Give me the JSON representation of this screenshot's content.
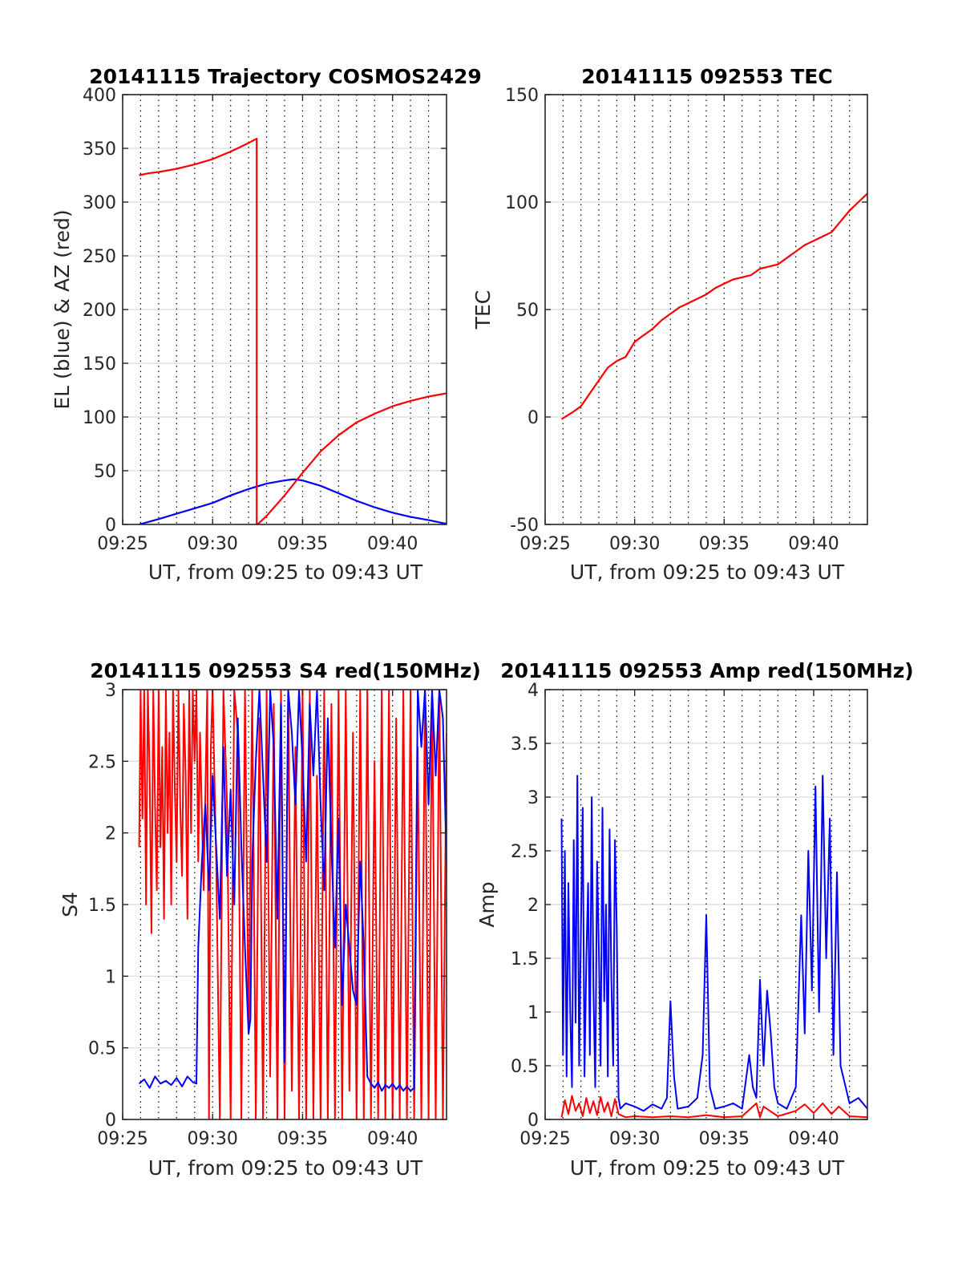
{
  "colors": {
    "el": "#0000ff",
    "az": "#ff0000",
    "tec": "#ff0000",
    "s4_red": "#ff0000",
    "s4_blue": "#0000ff",
    "amp_red": "#ff0000",
    "amp_blue": "#0000ff",
    "grid": "#dcdcdc",
    "minor_grid": "#000000",
    "axes": "#262626"
  },
  "chart_data": [
    {
      "id": "trajectory",
      "type": "line",
      "title": "20141115 Trajectory COSMOS2429",
      "xlabel": "UT, from 09:25 to 09:43 UT",
      "ylabel": "EL (blue) & AZ (red)",
      "xlim": [
        25.0,
        43.0
      ],
      "ylim": [
        0,
        400
      ],
      "xticks": [
        25,
        30,
        35,
        40
      ],
      "xtick_labels": [
        "09:25",
        "09:30",
        "09:35",
        "09:40"
      ],
      "yticks": [
        0,
        50,
        100,
        150,
        200,
        250,
        300,
        350,
        400
      ],
      "ytick_labels": [
        "0",
        "50",
        "100",
        "150",
        "200",
        "250",
        "300",
        "350",
        "400"
      ],
      "grid": true,
      "series": [
        {
          "color": "el",
          "x": [
            25.92,
            27,
            28,
            29,
            30,
            31,
            32,
            33,
            34,
            34.5,
            35,
            36,
            37,
            38,
            39,
            40,
            41,
            42,
            43
          ],
          "y": [
            0,
            5,
            10,
            15,
            20,
            27,
            33,
            38,
            41,
            42,
            41,
            36,
            29,
            22,
            16,
            11,
            7,
            4,
            0.5
          ]
        },
        {
          "color": "az",
          "x": [
            25.92,
            26.5,
            27,
            28,
            29,
            30,
            31,
            31.5,
            32,
            32.45,
            32.45,
            32.5,
            33,
            34,
            35,
            36,
            37,
            38,
            39,
            40,
            41,
            42,
            43
          ],
          "y": [
            325,
            327,
            328,
            331,
            335,
            340,
            347,
            351,
            355,
            359,
            0,
            0,
            8,
            27,
            48,
            68,
            83,
            95,
            103,
            110,
            115,
            119,
            122
          ]
        }
      ]
    },
    {
      "id": "tec",
      "type": "line",
      "title": "20141115 092553 TEC",
      "xlabel": "UT, from 09:25 to 09:43 UT",
      "ylabel": "TEC",
      "xlim": [
        25.0,
        43.0
      ],
      "ylim": [
        -50,
        150
      ],
      "xticks": [
        25,
        30,
        35,
        40
      ],
      "xtick_labels": [
        "09:25",
        "09:30",
        "09:35",
        "09:40"
      ],
      "yticks": [
        -50,
        0,
        50,
        100,
        150
      ],
      "ytick_labels": [
        "-50",
        "0",
        "50",
        "100",
        "150"
      ],
      "grid": true,
      "series": [
        {
          "color": "tec",
          "x": [
            25.92,
            26.5,
            27,
            27.5,
            28,
            28.5,
            29,
            29.5,
            30,
            30.5,
            31,
            31.5,
            32,
            32.5,
            33,
            33.5,
            34,
            34.5,
            35,
            35.5,
            36,
            36.5,
            37,
            37.5,
            38,
            38.5,
            39,
            39.5,
            40,
            40.5,
            41,
            41.5,
            42,
            42.5,
            43
          ],
          "y": [
            -1,
            2,
            5,
            11,
            17,
            23,
            26,
            28,
            35,
            38,
            41,
            45,
            48,
            51,
            53,
            55,
            57,
            60,
            62,
            64,
            65,
            66,
            69,
            70,
            71,
            74,
            77,
            80,
            82,
            84,
            86,
            91,
            96,
            100,
            104
          ]
        }
      ]
    },
    {
      "id": "s4",
      "type": "line",
      "title": "20141115 092553 S4 red(150MHz)",
      "xlabel": "UT, from 09:25 to 09:43 UT",
      "ylabel": "S4",
      "xlim": [
        25.0,
        43.0
      ],
      "ylim": [
        0,
        3
      ],
      "xticks": [
        25,
        30,
        35,
        40
      ],
      "xtick_labels": [
        "09:25",
        "09:30",
        "09:35",
        "09:40"
      ],
      "yticks": [
        0,
        0.5,
        1,
        1.5,
        2,
        2.5,
        3
      ],
      "ytick_labels": [
        "0",
        "0.5",
        "1",
        "1.5",
        "2",
        "2.5",
        "3"
      ],
      "grid": true,
      "series": [
        {
          "color": "s4_red",
          "x": [
            25.92,
            26.0,
            26.1,
            26.2,
            26.3,
            26.4,
            26.5,
            26.6,
            26.7,
            26.8,
            26.9,
            27.0,
            27.1,
            27.2,
            27.3,
            27.4,
            27.5,
            27.6,
            27.7,
            27.8,
            27.9,
            28.0,
            28.1,
            28.2,
            28.3,
            28.4,
            28.5,
            28.6,
            28.7,
            28.8,
            28.9,
            29.0,
            29.1,
            29.2,
            29.3,
            29.5,
            29.7,
            29.8,
            29.9,
            30.0,
            30.2,
            30.4,
            30.6,
            30.8,
            31.0,
            31.2,
            31.4,
            31.6,
            31.8,
            32.0,
            32.2,
            32.4,
            32.6,
            32.8,
            33.0,
            33.2,
            33.4,
            33.6,
            33.8,
            34.0,
            34.2,
            34.4,
            34.6,
            34.8,
            35.0,
            35.2,
            35.4,
            35.6,
            35.8,
            36.0,
            36.2,
            36.4,
            36.6,
            36.8,
            37.0,
            37.2,
            37.4,
            37.6,
            37.8,
            38.0,
            38.2,
            38.4,
            38.6,
            38.8,
            39.0,
            39.2,
            39.4,
            39.6,
            39.8,
            40.0,
            40.2,
            40.4,
            40.6,
            40.8,
            41.0,
            41.2,
            41.4,
            41.6,
            41.8,
            42.0,
            42.2,
            42.4,
            42.6,
            42.8,
            43.0
          ],
          "y": [
            1.9,
            3.0,
            2.1,
            3.0,
            1.5,
            3.0,
            2.4,
            1.3,
            3.0,
            2.2,
            1.6,
            3.0,
            1.9,
            2.6,
            1.4,
            3.0,
            2.0,
            2.7,
            1.5,
            3.0,
            2.3,
            1.8,
            3.0,
            2.2,
            1.7,
            2.9,
            2.4,
            1.4,
            3.0,
            2.0,
            3.0,
            2.5,
            3.0,
            1.8,
            2.7,
            1.6,
            3.0,
            0.0,
            2.6,
            3.0,
            1.8,
            0.0,
            3.0,
            2.2,
            0.0,
            3.0,
            2.7,
            0.0,
            3.0,
            0.6,
            3.0,
            0.0,
            2.8,
            0.0,
            3.0,
            0.3,
            2.9,
            0.0,
            3.0,
            0.0,
            3.0,
            0.2,
            2.6,
            0.0,
            3.0,
            0.0,
            3.0,
            0.0,
            2.4,
            0.0,
            3.0,
            0.0,
            2.9,
            0.0,
            3.0,
            0.0,
            3.0,
            0.2,
            2.7,
            0.0,
            3.0,
            0.0,
            3.0,
            0.0,
            2.5,
            0.0,
            3.0,
            0.0,
            3.0,
            0.0,
            2.8,
            0.0,
            3.0,
            0.0,
            3.0,
            0.0,
            2.6,
            0.0,
            3.0,
            0.0,
            3.0,
            0.0,
            3.0,
            0.0,
            2.7
          ]
        },
        {
          "color": "s4_blue",
          "x": [
            25.92,
            26.2,
            26.5,
            26.8,
            27.1,
            27.4,
            27.7,
            28.0,
            28.3,
            28.6,
            28.9,
            29.1,
            29.2,
            29.4,
            29.6,
            29.8,
            30.0,
            30.2,
            30.4,
            30.6,
            30.8,
            31.0,
            31.2,
            31.4,
            31.6,
            31.8,
            32.0,
            32.1,
            32.2,
            32.4,
            32.6,
            32.8,
            33.0,
            33.2,
            33.4,
            33.6,
            33.8,
            34.0,
            34.2,
            34.4,
            34.6,
            34.8,
            35.0,
            35.2,
            35.4,
            35.6,
            35.8,
            36.0,
            36.2,
            36.4,
            36.6,
            36.8,
            37.0,
            37.2,
            37.4,
            37.6,
            37.8,
            38.0,
            38.2,
            38.4,
            38.6,
            38.8,
            39.0,
            39.2,
            39.4,
            39.6,
            39.8,
            40.0,
            40.2,
            40.4,
            40.6,
            40.8,
            41.0,
            41.2,
            41.4,
            41.6,
            41.8,
            42.0,
            42.2,
            42.4,
            42.6,
            42.8,
            43.0
          ],
          "y": [
            0.25,
            0.28,
            0.22,
            0.3,
            0.25,
            0.27,
            0.24,
            0.29,
            0.23,
            0.3,
            0.26,
            0.25,
            1.2,
            1.8,
            2.2,
            1.6,
            2.4,
            1.9,
            1.4,
            2.6,
            1.7,
            2.3,
            1.5,
            2.8,
            1.9,
            1.2,
            0.6,
            0.7,
            1.8,
            2.5,
            3.0,
            2.4,
            1.8,
            3.0,
            2.6,
            1.4,
            2.9,
            0.4,
            3.0,
            2.7,
            2.2,
            3.0,
            2.5,
            1.8,
            2.9,
            2.4,
            3.0,
            2.2,
            1.6,
            2.8,
            1.9,
            1.2,
            2.1,
            0.8,
            1.5,
            1.2,
            0.9,
            0.8,
            1.8,
            1.2,
            0.3,
            0.25,
            0.22,
            0.26,
            0.2,
            0.24,
            0.22,
            0.25,
            0.21,
            0.24,
            0.2,
            0.23,
            0.2,
            0.22,
            3.0,
            2.6,
            3.0,
            2.2,
            3.0,
            2.4,
            3.0,
            2.8,
            1.8
          ]
        }
      ]
    },
    {
      "id": "amp",
      "type": "line",
      "title": "20141115 092553 Amp red(150MHz)",
      "xlabel": "UT, from 09:25 to 09:43 UT",
      "ylabel": "Amp",
      "xlim": [
        25.0,
        43.0
      ],
      "ylim": [
        0,
        4
      ],
      "xticks": [
        25,
        30,
        35,
        40
      ],
      "xtick_labels": [
        "09:25",
        "09:30",
        "09:35",
        "09:40"
      ],
      "yticks": [
        0,
        0.5,
        1,
        1.5,
        2,
        2.5,
        3,
        3.5,
        4
      ],
      "ytick_labels": [
        "0",
        "0.5",
        "1",
        "1.5",
        "2",
        "2.5",
        "3",
        "3.5",
        "4"
      ],
      "grid": true,
      "series": [
        {
          "color": "amp_red",
          "x": [
            25.92,
            26.1,
            26.3,
            26.5,
            26.7,
            26.9,
            27.1,
            27.3,
            27.5,
            27.7,
            27.9,
            28.1,
            28.3,
            28.5,
            28.7,
            28.9,
            29.1,
            29.5,
            30.0,
            31.0,
            32.0,
            33.0,
            34.0,
            35.0,
            36.0,
            36.8,
            37.0,
            37.2,
            38.0,
            39.0,
            39.5,
            40.0,
            40.5,
            41.0,
            41.4,
            42.0,
            43.0
          ],
          "y": [
            0.02,
            0.18,
            0.05,
            0.22,
            0.08,
            0.15,
            0.03,
            0.2,
            0.06,
            0.17,
            0.04,
            0.21,
            0.07,
            0.16,
            0.03,
            0.19,
            0.05,
            0.02,
            0.03,
            0.02,
            0.03,
            0.02,
            0.04,
            0.02,
            0.03,
            0.15,
            0.02,
            0.12,
            0.03,
            0.08,
            0.14,
            0.06,
            0.15,
            0.05,
            0.12,
            0.03,
            0.02
          ]
        },
        {
          "color": "amp_blue",
          "x": [
            25.92,
            26.0,
            26.1,
            26.2,
            26.3,
            26.4,
            26.5,
            26.6,
            26.7,
            26.8,
            26.9,
            27.0,
            27.1,
            27.2,
            27.3,
            27.4,
            27.5,
            27.6,
            27.7,
            27.8,
            27.9,
            28.0,
            28.1,
            28.2,
            28.3,
            28.4,
            28.5,
            28.6,
            28.7,
            28.8,
            28.9,
            29.0,
            29.1,
            29.2,
            29.5,
            30.0,
            30.5,
            31.0,
            31.5,
            31.8,
            32.0,
            32.2,
            32.4,
            33.0,
            33.5,
            33.8,
            34.0,
            34.2,
            34.5,
            35.0,
            35.5,
            36.0,
            36.4,
            36.6,
            36.8,
            37.0,
            37.2,
            37.4,
            37.6,
            37.8,
            38.0,
            38.5,
            39.0,
            39.3,
            39.5,
            39.7,
            39.9,
            40.1,
            40.3,
            40.5,
            40.7,
            40.9,
            41.1,
            41.3,
            41.5,
            42.0,
            42.5,
            43.0
          ],
          "y": [
            2.8,
            0.6,
            2.5,
            0.4,
            2.2,
            1.0,
            0.3,
            2.6,
            0.9,
            3.2,
            0.5,
            1.8,
            2.9,
            0.4,
            1.5,
            2.2,
            0.6,
            3.0,
            1.2,
            0.3,
            2.4,
            1.6,
            0.5,
            2.9,
            1.1,
            2.0,
            0.4,
            2.7,
            1.3,
            0.5,
            2.6,
            1.8,
            0.2,
            0.1,
            0.15,
            0.12,
            0.08,
            0.14,
            0.1,
            0.2,
            1.1,
            0.4,
            0.1,
            0.12,
            0.2,
            0.6,
            1.9,
            0.3,
            0.1,
            0.12,
            0.15,
            0.1,
            0.6,
            0.3,
            0.2,
            1.3,
            0.5,
            1.2,
            0.8,
            0.3,
            0.15,
            0.1,
            0.3,
            1.9,
            0.8,
            2.5,
            1.2,
            3.1,
            1.0,
            3.2,
            1.5,
            2.8,
            0.6,
            2.3,
            0.5,
            0.15,
            0.2,
            0.1
          ]
        }
      ]
    }
  ]
}
